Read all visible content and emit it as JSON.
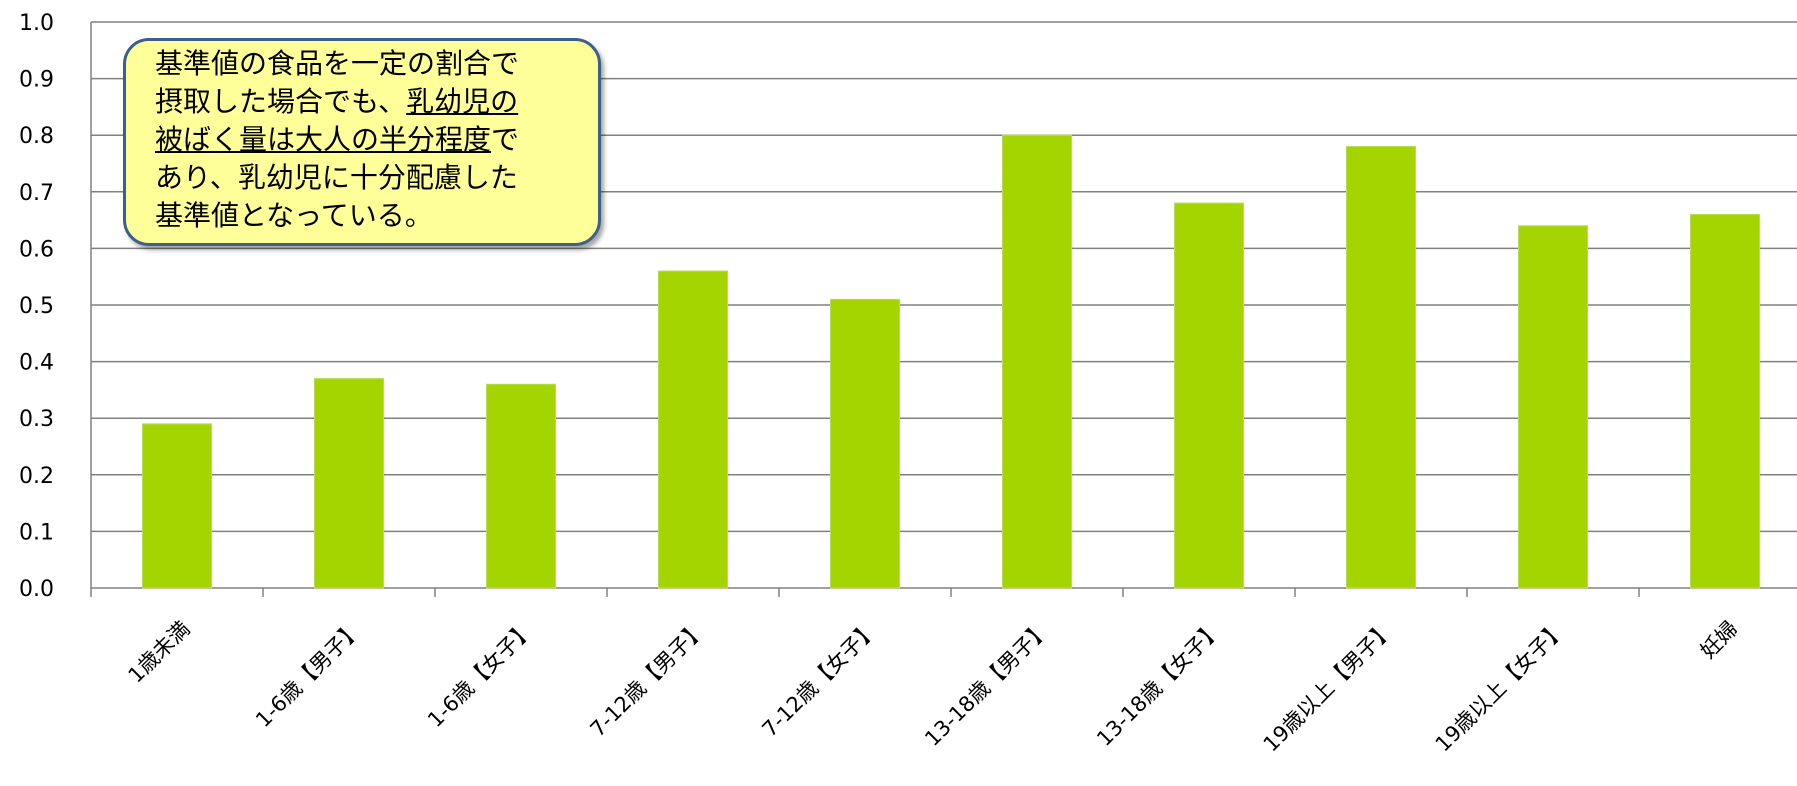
{
  "chart_data": {
    "type": "bar",
    "title": "",
    "xlabel": "",
    "ylabel": "",
    "ylim": [
      0,
      1.0
    ],
    "yticks": [
      "0.0",
      "0.1",
      "0.2",
      "0.3",
      "0.4",
      "0.5",
      "0.6",
      "0.7",
      "0.8",
      "0.9",
      "1.0"
    ],
    "grid": true,
    "categories": [
      "1歳未満",
      "1-6歳【男子】",
      "1-6歳【女子】",
      "7-12歳【男子】",
      "7-12歳【女子】",
      "13-18歳【男子】",
      "13-18歳【女子】",
      "19歳以上【男子】",
      "19歳以上【女子】",
      "妊婦"
    ],
    "values": [
      0.29,
      0.37,
      0.36,
      0.56,
      0.51,
      0.8,
      0.68,
      0.78,
      0.64,
      0.66
    ],
    "bar_color": "#a4d500",
    "gridline_color": "#808080"
  },
  "annotation": {
    "line1": "基準値の食品を一定の割合で",
    "line2a": "摂取した場合でも、",
    "line2b": "乳幼児の",
    "line3a": "被ばく量は大人の半分程度",
    "line3b": "で",
    "line4": "あり、乳幼児に十分配慮した",
    "line5": "基準値となっている。",
    "fill_color": "#ffff99",
    "border_color": "#3d5f8c"
  }
}
